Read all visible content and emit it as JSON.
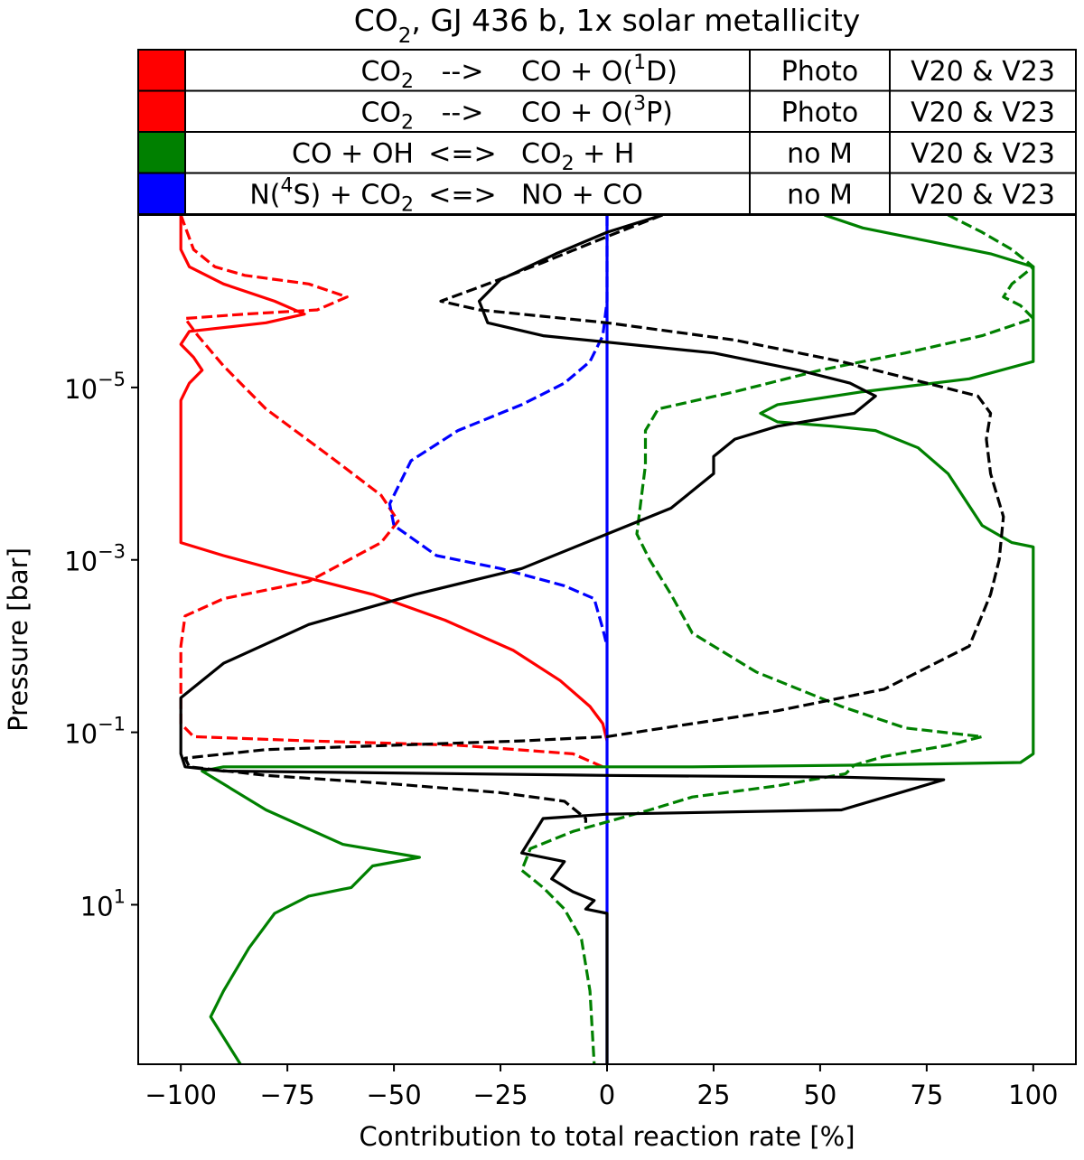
{
  "chart_data": {
    "type": "line",
    "title_main": "CO",
    "title_sub": "2",
    "title_rest": ", GJ 436 b, 1x solar metallicity",
    "xlabel": "Contribution to total reaction rate [%]",
    "ylabel": "Pressure [bar]",
    "xlim": [
      -110,
      110
    ],
    "ylim_log10": [
      -7,
      2.85
    ],
    "y_scale": "log",
    "y_inverted": true,
    "grid": false,
    "x_ticks": [
      {
        "value": -100,
        "label": "−100"
      },
      {
        "value": -75,
        "label": "−75"
      },
      {
        "value": -50,
        "label": "−50"
      },
      {
        "value": -25,
        "label": "−25"
      },
      {
        "value": 0,
        "label": "0"
      },
      {
        "value": 25,
        "label": "25"
      },
      {
        "value": 50,
        "label": "50"
      },
      {
        "value": 75,
        "label": "75"
      },
      {
        "value": 100,
        "label": "100"
      }
    ],
    "y_ticks": [
      {
        "exp": -5,
        "base": "10",
        "sup": "−5"
      },
      {
        "exp": -3,
        "base": "10",
        "sup": "−3"
      },
      {
        "exp": -1,
        "base": "10",
        "sup": "−1"
      },
      {
        "exp": 1,
        "base": "10",
        "sup": "1"
      }
    ],
    "legend_rows": [
      {
        "color": "#ff0000",
        "reactant": [
          {
            "t": "CO"
          },
          {
            "t": "2",
            "sub": true
          }
        ],
        "arrow": "-->",
        "products": [
          {
            "t": "CO + O("
          },
          {
            "t": "1",
            "sup": true
          },
          {
            "t": "D)"
          }
        ],
        "type": "Photo",
        "ref": "V20 & V23"
      },
      {
        "color": "#ff0000",
        "reactant": [
          {
            "t": "CO"
          },
          {
            "t": "2",
            "sub": true
          }
        ],
        "arrow": "-->",
        "products": [
          {
            "t": "CO + O("
          },
          {
            "t": "3",
            "sup": true
          },
          {
            "t": "P)"
          }
        ],
        "type": "Photo",
        "ref": "V20 & V23"
      },
      {
        "color": "#008000",
        "reactant": [
          {
            "t": "CO + OH"
          }
        ],
        "arrow": "<=>",
        "products": [
          {
            "t": "CO"
          },
          {
            "t": "2",
            "sub": true
          },
          {
            "t": " + H"
          }
        ],
        "type": "no M",
        "ref": "V20 & V23"
      },
      {
        "color": "#0000ff",
        "reactant": [
          {
            "t": "N("
          },
          {
            "t": "4",
            "sup": true
          },
          {
            "t": "S) + CO"
          },
          {
            "t": "2",
            "sub": true
          }
        ],
        "arrow": "<=>",
        "products": [
          {
            "t": "NO + CO"
          }
        ],
        "type": "no M",
        "ref": "V20 & V23"
      }
    ],
    "series": [
      {
        "color": "#ff0000",
        "dash": false,
        "points": [
          [
            -100,
            -7.0
          ],
          [
            -100,
            -6.6
          ],
          [
            -98,
            -6.4
          ],
          [
            -90,
            -6.2
          ],
          [
            -78,
            -6.0
          ],
          [
            -71,
            -5.85
          ],
          [
            -80,
            -5.75
          ],
          [
            -98,
            -5.65
          ],
          [
            -100,
            -5.5
          ],
          [
            -97,
            -5.35
          ],
          [
            -95,
            -5.2
          ],
          [
            -98,
            -5.05
          ],
          [
            -100,
            -4.85
          ],
          [
            -100,
            -3.2
          ],
          [
            -90,
            -3.05
          ],
          [
            -75,
            -2.85
          ],
          [
            -55,
            -2.6
          ],
          [
            -38,
            -2.3
          ],
          [
            -22,
            -1.95
          ],
          [
            -11,
            -1.6
          ],
          [
            -4,
            -1.3
          ],
          [
            -1,
            -1.1
          ],
          [
            0,
            -0.9
          ]
        ]
      },
      {
        "color": "#ff0000",
        "dash": true,
        "points": [
          [
            -100,
            -7.0
          ],
          [
            -97,
            -6.6
          ],
          [
            -92,
            -6.4
          ],
          [
            -85,
            -6.3
          ],
          [
            -70,
            -6.2
          ],
          [
            -61,
            -6.05
          ],
          [
            -68,
            -5.9
          ],
          [
            -85,
            -5.85
          ],
          [
            -99,
            -5.8
          ],
          [
            -96,
            -5.6
          ],
          [
            -90,
            -5.25
          ],
          [
            -80,
            -4.75
          ],
          [
            -65,
            -4.2
          ],
          [
            -53,
            -3.75
          ],
          [
            -49,
            -3.45
          ],
          [
            -53,
            -3.2
          ],
          [
            -70,
            -2.75
          ],
          [
            -90,
            -2.55
          ],
          [
            -99,
            -2.35
          ],
          [
            -100,
            -2.0
          ],
          [
            -100,
            -1.1
          ],
          [
            -97,
            -0.95
          ],
          [
            -70,
            -0.9
          ],
          [
            -35,
            -0.85
          ],
          [
            -8,
            -0.75
          ],
          [
            -1,
            -0.6
          ]
        ]
      },
      {
        "color": "#0000ff",
        "dash": true,
        "points": [
          [
            0,
            -7.0
          ],
          [
            0,
            -6.0
          ],
          [
            -1,
            -5.6
          ],
          [
            -2,
            -5.5
          ],
          [
            -4,
            -5.3
          ],
          [
            -10,
            -5.05
          ],
          [
            -20,
            -4.8
          ],
          [
            -35,
            -4.5
          ],
          [
            -46,
            -4.15
          ],
          [
            -51,
            -3.65
          ],
          [
            -50,
            -3.4
          ],
          [
            -40,
            -3.05
          ],
          [
            -25,
            -2.9
          ],
          [
            -10,
            -2.7
          ],
          [
            -3,
            -2.55
          ],
          [
            -1,
            -2.2
          ],
          [
            0,
            -2.0
          ]
        ]
      },
      {
        "color": "#0000ff",
        "dash": false,
        "points": [
          [
            0,
            -7.0
          ],
          [
            0,
            2.85
          ]
        ]
      },
      {
        "color": "#008000",
        "dash": false,
        "points": [
          [
            51,
            -7.0
          ],
          [
            60,
            -6.85
          ],
          [
            75,
            -6.7
          ],
          [
            90,
            -6.55
          ],
          [
            100,
            -6.4
          ],
          [
            100,
            -5.3
          ],
          [
            85,
            -5.1
          ],
          [
            60,
            -4.95
          ],
          [
            40,
            -4.8
          ],
          [
            36,
            -4.7
          ],
          [
            40,
            -4.6
          ],
          [
            53,
            -4.55
          ],
          [
            63,
            -4.5
          ],
          [
            73,
            -4.3
          ],
          [
            80,
            -4.0
          ],
          [
            88,
            -3.4
          ],
          [
            95,
            -3.2
          ],
          [
            100,
            -3.15
          ],
          [
            100,
            -0.75
          ],
          [
            97,
            -0.65
          ],
          [
            60,
            -0.62
          ],
          [
            20,
            -0.6
          ],
          [
            0,
            -0.6
          ],
          [
            -20,
            -0.6
          ],
          [
            -60,
            -0.6
          ],
          [
            -90,
            -0.6
          ],
          [
            -95,
            -0.55
          ],
          [
            -90,
            -0.4
          ],
          [
            -80,
            -0.1
          ],
          [
            -62,
            0.3
          ],
          [
            -44,
            0.45
          ],
          [
            -55,
            0.55
          ],
          [
            -60,
            0.8
          ],
          [
            -70,
            0.9
          ],
          [
            -78,
            1.1
          ],
          [
            -84,
            1.5
          ],
          [
            -90,
            2.0
          ],
          [
            -93,
            2.3
          ],
          [
            -86,
            2.85
          ]
        ]
      },
      {
        "color": "#008000",
        "dash": true,
        "points": [
          [
            80,
            -7.0
          ],
          [
            88,
            -6.8
          ],
          [
            95,
            -6.6
          ],
          [
            100,
            -6.4
          ],
          [
            95,
            -6.2
          ],
          [
            93,
            -6.05
          ],
          [
            97,
            -5.95
          ],
          [
            100,
            -5.8
          ],
          [
            88,
            -5.6
          ],
          [
            70,
            -5.4
          ],
          [
            60,
            -5.3
          ],
          [
            50,
            -5.2
          ],
          [
            30,
            -4.95
          ],
          [
            12,
            -4.75
          ],
          [
            9,
            -4.5
          ],
          [
            9,
            -4.1
          ],
          [
            8,
            -3.7
          ],
          [
            7,
            -3.3
          ],
          [
            10,
            -3.0
          ],
          [
            15,
            -2.6
          ],
          [
            20,
            -2.15
          ],
          [
            35,
            -1.7
          ],
          [
            55,
            -1.3
          ],
          [
            70,
            -1.05
          ],
          [
            88,
            -0.95
          ],
          [
            80,
            -0.85
          ],
          [
            65,
            -0.72
          ],
          [
            58,
            -0.62
          ],
          [
            56,
            -0.52
          ],
          [
            40,
            -0.38
          ],
          [
            20,
            -0.25
          ],
          [
            10,
            -0.1
          ],
          [
            -8,
            0.15
          ],
          [
            -18,
            0.35
          ],
          [
            -20,
            0.6
          ],
          [
            -15,
            0.8
          ],
          [
            -10,
            1.05
          ],
          [
            -6,
            1.4
          ],
          [
            -4,
            2.0
          ],
          [
            -3,
            2.85
          ]
        ]
      },
      {
        "color": "#000000",
        "dash": false,
        "points": [
          [
            13,
            -7.0
          ],
          [
            0,
            -6.8
          ],
          [
            -12,
            -6.55
          ],
          [
            -25,
            -6.25
          ],
          [
            -30,
            -6.0
          ],
          [
            -28,
            -5.75
          ],
          [
            -15,
            -5.6
          ],
          [
            5,
            -5.5
          ],
          [
            25,
            -5.4
          ],
          [
            45,
            -5.2
          ],
          [
            57,
            -5.05
          ],
          [
            63,
            -4.9
          ],
          [
            58,
            -4.7
          ],
          [
            40,
            -4.55
          ],
          [
            30,
            -4.4
          ],
          [
            25,
            -4.2
          ],
          [
            25,
            -4.0
          ],
          [
            15,
            -3.6
          ],
          [
            0,
            -3.3
          ],
          [
            -20,
            -2.9
          ],
          [
            -45,
            -2.6
          ],
          [
            -70,
            -2.25
          ],
          [
            -90,
            -1.8
          ],
          [
            -100,
            -1.4
          ],
          [
            -100,
            -0.75
          ],
          [
            -99,
            -0.6
          ],
          [
            -90,
            -0.55
          ],
          [
            0,
            -0.5
          ],
          [
            55,
            -0.48
          ],
          [
            79,
            -0.45
          ],
          [
            55,
            -0.1
          ],
          [
            0,
            -0.05
          ],
          [
            -15,
            0.0
          ],
          [
            -20,
            0.4
          ],
          [
            -10,
            0.5
          ],
          [
            -13,
            0.7
          ],
          [
            -8,
            0.85
          ],
          [
            -3,
            0.95
          ],
          [
            -5,
            1.05
          ],
          [
            0,
            1.1
          ],
          [
            0,
            2.85
          ]
        ]
      },
      {
        "color": "#000000",
        "dash": true,
        "points": [
          [
            13,
            -7.0
          ],
          [
            0,
            -6.75
          ],
          [
            -15,
            -6.45
          ],
          [
            -28,
            -6.2
          ],
          [
            -39,
            -6.0
          ],
          [
            -30,
            -5.9
          ],
          [
            0,
            -5.75
          ],
          [
            30,
            -5.55
          ],
          [
            55,
            -5.3
          ],
          [
            75,
            -5.05
          ],
          [
            87,
            -4.9
          ],
          [
            90,
            -4.7
          ],
          [
            89,
            -4.4
          ],
          [
            90,
            -4.0
          ],
          [
            93,
            -3.5
          ],
          [
            92,
            -3.0
          ],
          [
            90,
            -2.6
          ],
          [
            85,
            -2.0
          ],
          [
            65,
            -1.5
          ],
          [
            40,
            -1.25
          ],
          [
            20,
            -1.1
          ],
          [
            0,
            -0.95
          ],
          [
            -20,
            -0.9
          ],
          [
            -50,
            -0.85
          ],
          [
            -80,
            -0.8
          ],
          [
            -99,
            -0.7
          ],
          [
            -98,
            -0.6
          ],
          [
            -80,
            -0.5
          ],
          [
            -50,
            -0.4
          ],
          [
            -25,
            -0.3
          ],
          [
            -10,
            -0.2
          ],
          [
            -5,
            0.0
          ],
          [
            -5,
            0.05
          ]
        ]
      }
    ]
  }
}
